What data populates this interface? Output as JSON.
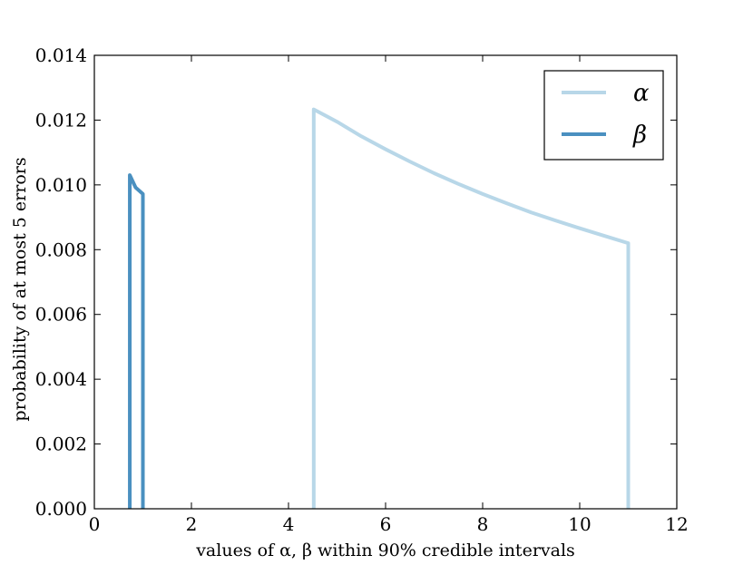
{
  "chart_data": {
    "type": "line",
    "title": "",
    "xlabel": "values of α, β within 90% credible intervals",
    "ylabel": "probability of at most 5 errors",
    "xlim": [
      0,
      12
    ],
    "ylim": [
      0,
      0.014
    ],
    "xticks": [
      0,
      2,
      4,
      6,
      8,
      10,
      12
    ],
    "xtick_labels": [
      "0",
      "2",
      "4",
      "6",
      "8",
      "10",
      "12"
    ],
    "yticks": [
      0,
      0.002,
      0.004,
      0.006,
      0.008,
      0.01,
      0.012,
      0.014
    ],
    "ytick_labels": [
      "0.000",
      "0.002",
      "0.004",
      "0.006",
      "0.008",
      "0.010",
      "0.012",
      "0.014"
    ],
    "grid": false,
    "legend_position": "top-right",
    "series": [
      {
        "name": "α",
        "color": "#b8d7e8",
        "x": [
          4.52,
          4.52,
          5.0,
          5.5,
          6.0,
          6.5,
          7.0,
          7.5,
          8.0,
          8.5,
          9.0,
          9.5,
          10.0,
          10.5,
          11.0,
          11.0
        ],
        "y": [
          0.0,
          0.01233,
          0.01195,
          0.0115,
          0.0111,
          0.01072,
          0.01036,
          0.01003,
          0.00972,
          0.00943,
          0.00915,
          0.0089,
          0.00866,
          0.00843,
          0.0082,
          0.0
        ]
      },
      {
        "name": "β",
        "color": "#4a90c0",
        "x": [
          0.73,
          0.73,
          0.85,
          1.0,
          1.0
        ],
        "y": [
          0.0,
          0.0103,
          0.00992,
          0.00972,
          0.0
        ]
      }
    ]
  }
}
